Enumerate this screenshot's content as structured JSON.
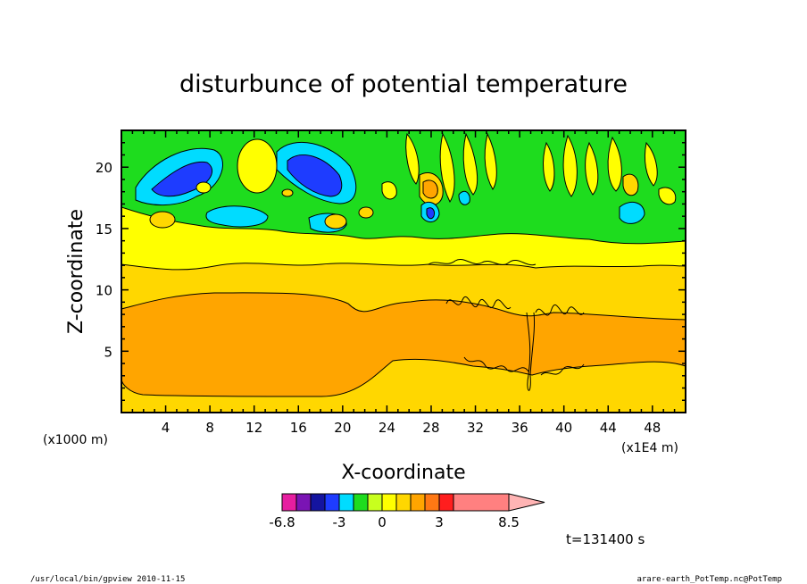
{
  "chart_data": {
    "type": "heatmap",
    "title": "disturbunce of potential temperature",
    "xlabel": "X-coordinate",
    "ylabel": "Z-coordinate",
    "x_unit": "(x1E4 m)",
    "y_unit": "(x1000 m)",
    "xlim": [
      0,
      51
    ],
    "ylim": [
      0,
      23
    ],
    "x_ticks": [
      "4",
      "8",
      "12",
      "16",
      "20",
      "24",
      "28",
      "32",
      "36",
      "40",
      "44",
      "48"
    ],
    "y_ticks": [
      "5",
      "10",
      "15",
      "20"
    ],
    "colorbar": {
      "colors": [
        "#e61ea0",
        "#7a14b4",
        "#1414a0",
        "#1e3cff",
        "#00dcff",
        "#1edc1e",
        "#c8ff1e",
        "#ffff00",
        "#ffd700",
        "#ffa500",
        "#ff7814",
        "#ff1e1e",
        "#ff8080",
        "#ffb4b4"
      ],
      "labels": [
        "-6.8",
        "-3",
        "0",
        "3",
        "8.5"
      ]
    },
    "time_label": "t=131400 s"
  },
  "footer": {
    "left": "/usr/local/bin/gpview  2010-11-15",
    "right": "arare-earth_PotTemp.nc@PotTemp"
  }
}
